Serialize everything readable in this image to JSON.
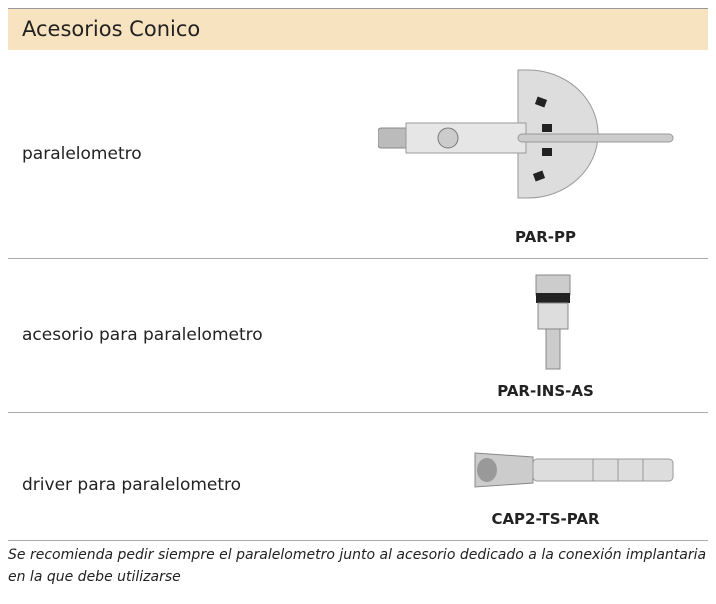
{
  "header": {
    "title": "Acesorios Conico"
  },
  "rows": [
    {
      "name": "paralelometro",
      "code": "PAR-PP"
    },
    {
      "name": "acesorio para paralelometro",
      "code": "PAR-INS-AS"
    },
    {
      "name": "driver para paralelometro",
      "code": "CAP2-TS-PAR"
    }
  ],
  "note": "Se recomienda pedir siempre el paralelometro junto al acesorio dedicado a la conexión implantaria en la que debe utilizarse"
}
